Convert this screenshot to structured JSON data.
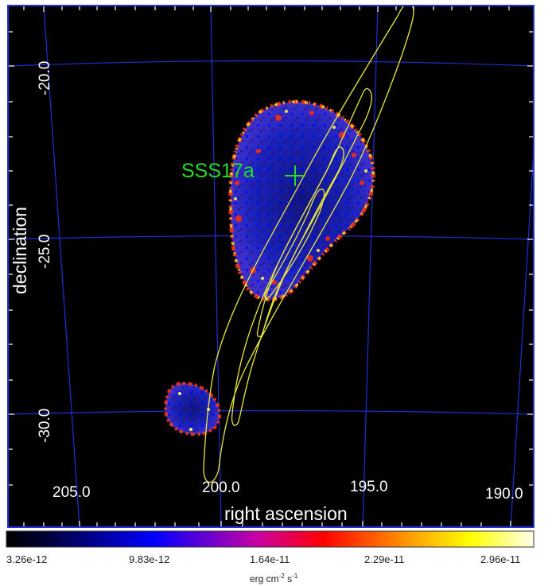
{
  "map": {
    "x_axis_label": "right ascension",
    "y_axis_label": "declination",
    "ra_ticks": [
      "205.0",
      "200.0",
      "195.0",
      "190.0"
    ],
    "dec_ticks": [
      "-20.0",
      "-25.0",
      "-30.0"
    ],
    "marker_label": "SSS17a",
    "colors": {
      "background": "#000000",
      "grid": "#1f2fd8",
      "frame": "#2233dd",
      "contour": "#e8e83a",
      "marker": "#22dd22"
    }
  },
  "colorbar": {
    "ticks": [
      "3.26e-12",
      "9.83e-12",
      "1.64e-11",
      "2.29e-11",
      "2.96e-11"
    ],
    "unit_base": "erg cm",
    "unit_exp1": "-2",
    "unit_mid": " s",
    "unit_exp2": "-1"
  }
}
